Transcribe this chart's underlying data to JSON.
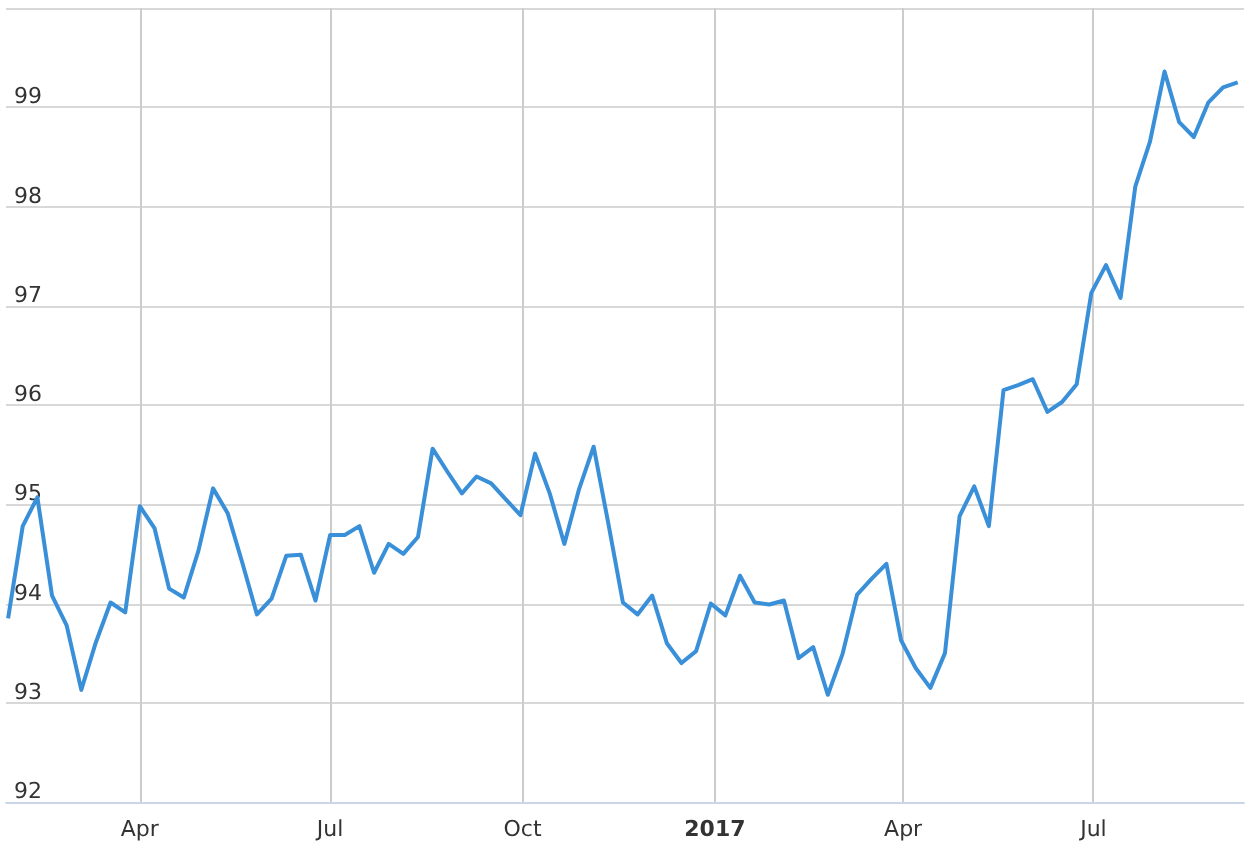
{
  "chart_data": {
    "type": "line",
    "x": [
      "2016-01-29",
      "2016-02-05",
      "2016-02-12",
      "2016-02-19",
      "2016-02-26",
      "2016-03-04",
      "2016-03-11",
      "2016-03-18",
      "2016-03-25",
      "2016-04-01",
      "2016-04-08",
      "2016-04-15",
      "2016-04-22",
      "2016-04-29",
      "2016-05-06",
      "2016-05-13",
      "2016-05-20",
      "2016-05-27",
      "2016-06-03",
      "2016-06-10",
      "2016-06-17",
      "2016-06-24",
      "2016-07-01",
      "2016-07-08",
      "2016-07-15",
      "2016-07-22",
      "2016-07-29",
      "2016-08-05",
      "2016-08-12",
      "2016-08-19",
      "2016-08-26",
      "2016-09-02",
      "2016-09-09",
      "2016-09-16",
      "2016-09-23",
      "2016-09-30",
      "2016-10-07",
      "2016-10-14",
      "2016-10-21",
      "2016-10-28",
      "2016-11-04",
      "2016-11-11",
      "2016-11-18",
      "2016-11-25",
      "2016-12-02",
      "2016-12-09",
      "2016-12-16",
      "2016-12-23",
      "2016-12-30",
      "2017-01-06",
      "2017-01-13",
      "2017-01-20",
      "2017-01-27",
      "2017-02-03",
      "2017-02-10",
      "2017-02-17",
      "2017-02-24",
      "2017-03-03",
      "2017-03-10",
      "2017-03-17",
      "2017-03-24",
      "2017-03-31",
      "2017-04-07",
      "2017-04-14",
      "2017-04-21",
      "2017-04-28",
      "2017-05-05",
      "2017-05-12",
      "2017-05-19",
      "2017-05-26",
      "2017-06-02",
      "2017-06-09",
      "2017-06-16",
      "2017-06-23",
      "2017-06-30",
      "2017-07-07",
      "2017-07-14",
      "2017-07-21",
      "2017-07-28",
      "2017-08-04",
      "2017-08-11",
      "2017-08-18",
      "2017-08-25",
      "2017-09-01",
      "2017-09-08"
    ],
    "series": [
      {
        "color": "#3a8fd9",
        "values": [
          93.85,
          94.78,
          95.07,
          94.08,
          93.78,
          93.13,
          93.61,
          94.01,
          93.91,
          94.98,
          94.76,
          94.15,
          94.06,
          94.53,
          95.16,
          94.91,
          94.41,
          93.89,
          94.05,
          94.48,
          94.49,
          94.03,
          94.69,
          94.69,
          94.78,
          94.31,
          94.6,
          94.5,
          94.67,
          95.56,
          95.33,
          95.11,
          95.28,
          95.21,
          95.05,
          94.89,
          95.51,
          95.11,
          94.6,
          95.15,
          95.58,
          94.81,
          94.01,
          93.89,
          94.08,
          93.6,
          93.4,
          93.52,
          94.0,
          93.88,
          94.28,
          94.01,
          93.99,
          94.03,
          93.45,
          93.56,
          93.08,
          93.49,
          94.09,
          94.25,
          94.4,
          93.63,
          93.35,
          93.15,
          93.5,
          94.88,
          95.18,
          94.78,
          96.15,
          96.2,
          96.26,
          95.93,
          96.03,
          96.21,
          97.13,
          97.41,
          97.08,
          98.2,
          98.65,
          99.36,
          98.85,
          98.7,
          99.05,
          99.2,
          99.25
        ]
      }
    ],
    "xlim": [
      "2016-01-28",
      "2017-09-11"
    ],
    "xticks": [
      {
        "value": "2016-04-01",
        "label": "Apr"
      },
      {
        "value": "2016-07-01",
        "label": "Jul"
      },
      {
        "value": "2016-10-01",
        "label": "Oct"
      },
      {
        "value": "2017-01-01",
        "label": "2017"
      },
      {
        "value": "2017-04-01",
        "label": "Apr"
      },
      {
        "value": "2017-07-01",
        "label": "Jul"
      }
    ],
    "ylim": [
      92,
      100
    ],
    "yticks": [
      92,
      93,
      94,
      95,
      96,
      97,
      98,
      99,
      {
        "value": 100,
        "label": null
      }
    ],
    "grid": true,
    "marker": "none",
    "line_style": "solid"
  }
}
